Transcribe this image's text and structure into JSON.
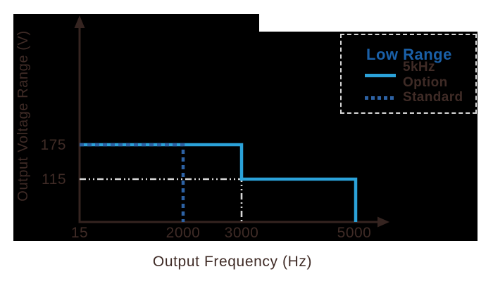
{
  "colors": {
    "canvas_bg": "#ffffff",
    "chart_bg": "#000000",
    "axis": "#352420",
    "dark_text": "#3f2b26",
    "bright_blue": "#2ba2d9",
    "navy_blue": "#2d62a4",
    "title_blue": "#1a60a8",
    "light_gray": "#d8d8d8"
  },
  "legend": {
    "title": "Low Range",
    "items": [
      {
        "label": "5kHz Option",
        "style": "solid"
      },
      {
        "label": "Standard",
        "style": "dashed"
      }
    ]
  },
  "chart_data": {
    "type": "line",
    "xlabel": "Output Frequency (Hz)",
    "ylabel": "Output Voltage Range (V)",
    "x_ticks": [
      15,
      2000,
      3000,
      5000
    ],
    "y_ticks": [
      175,
      115
    ],
    "xlim": [
      15,
      5000
    ],
    "ylim": [
      0,
      200
    ],
    "grid": false,
    "legend_position": "top-right",
    "series": [
      {
        "name": "series-reference-line",
        "label": "reference-guide",
        "color_key": "light_gray",
        "width": 2.6,
        "dash": "9 4 2 4 2 4",
        "points": [
          [
            15,
            115
          ],
          [
            3000,
            115
          ],
          [
            3000,
            0
          ]
        ]
      },
      {
        "name": "series-5khz-line",
        "label": "5kHz Option",
        "color_key": "bright_blue",
        "width": 4.5,
        "dash": "",
        "points": [
          [
            15,
            175
          ],
          [
            3000,
            175
          ],
          [
            3000,
            115
          ],
          [
            5000,
            115
          ],
          [
            5000,
            0
          ]
        ]
      },
      {
        "name": "series-standard-line",
        "label": "Standard",
        "color_key": "navy_blue",
        "width": 4.5,
        "dash": "6 5",
        "points": [
          [
            15,
            175
          ],
          [
            2000,
            175
          ],
          [
            2000,
            0
          ]
        ]
      }
    ],
    "pixel_map": {
      "x": {
        "15": 113,
        "2000": 260,
        "3000": 343,
        "5000": 505
      },
      "y": {
        "0": 316,
        "115": 255,
        "175": 206
      }
    }
  }
}
